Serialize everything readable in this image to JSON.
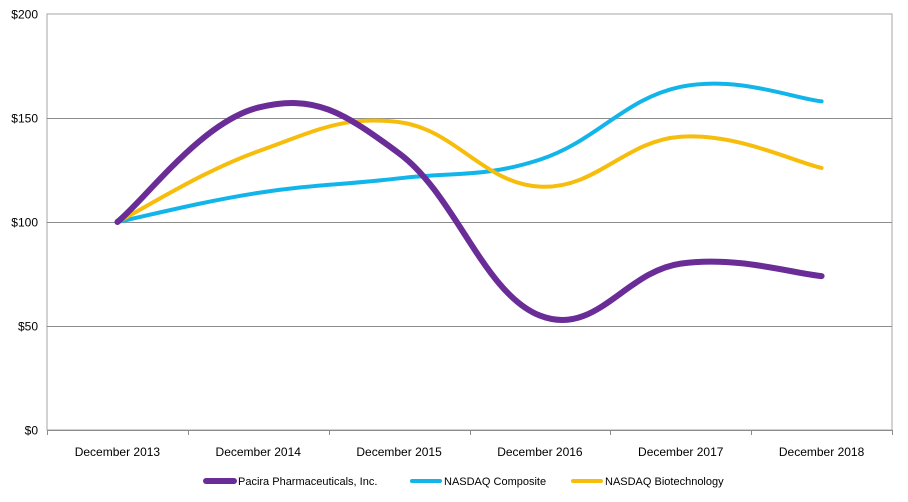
{
  "chart_data": {
    "type": "line",
    "x": [
      "December 2013",
      "December 2014",
      "December 2015",
      "December 2016",
      "December 2017",
      "December 2018"
    ],
    "ylim": [
      0,
      200
    ],
    "yticks": [
      "$0",
      "$50",
      "$100",
      "$150",
      "$200"
    ],
    "ytick_values": [
      0,
      50,
      100,
      150,
      200
    ],
    "grid": true,
    "legend_position": "bottom",
    "series": [
      {
        "name": "Pacira Pharmaceuticals, Inc.",
        "color": "#6a2d97",
        "values": [
          100,
          155,
          133,
          55,
          80,
          74
        ]
      },
      {
        "name": "NASDAQ Composite",
        "color": "#12b5ea",
        "values": [
          100,
          114,
          121,
          130,
          165,
          158
        ]
      },
      {
        "name": "NASDAQ Biotechnology",
        "color": "#f7bd0d",
        "values": [
          100,
          134,
          148,
          117,
          141,
          126
        ]
      }
    ]
  }
}
